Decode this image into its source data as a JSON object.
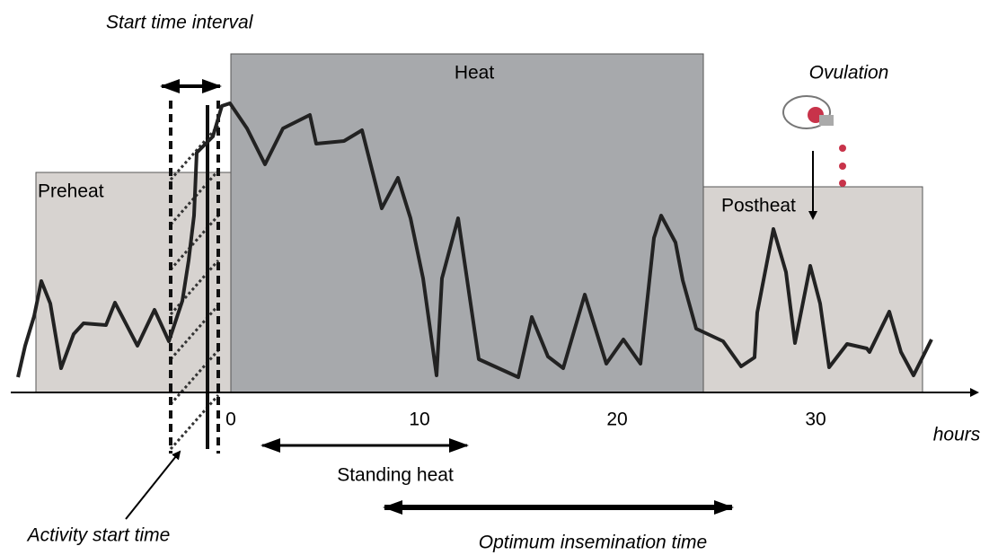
{
  "title": "Start time interval",
  "phases": {
    "preheat": "Preheat",
    "heat": "Heat",
    "postheat": "Postheat"
  },
  "events": {
    "ovulation": "Ovulation",
    "activity_start": "Activity start time"
  },
  "axis": {
    "ticks": [
      0,
      10,
      20,
      30
    ],
    "unit": "hours"
  },
  "intervals": {
    "standing_heat": "Standing heat",
    "optimum_insemination": "Optimum insemination time"
  }
}
